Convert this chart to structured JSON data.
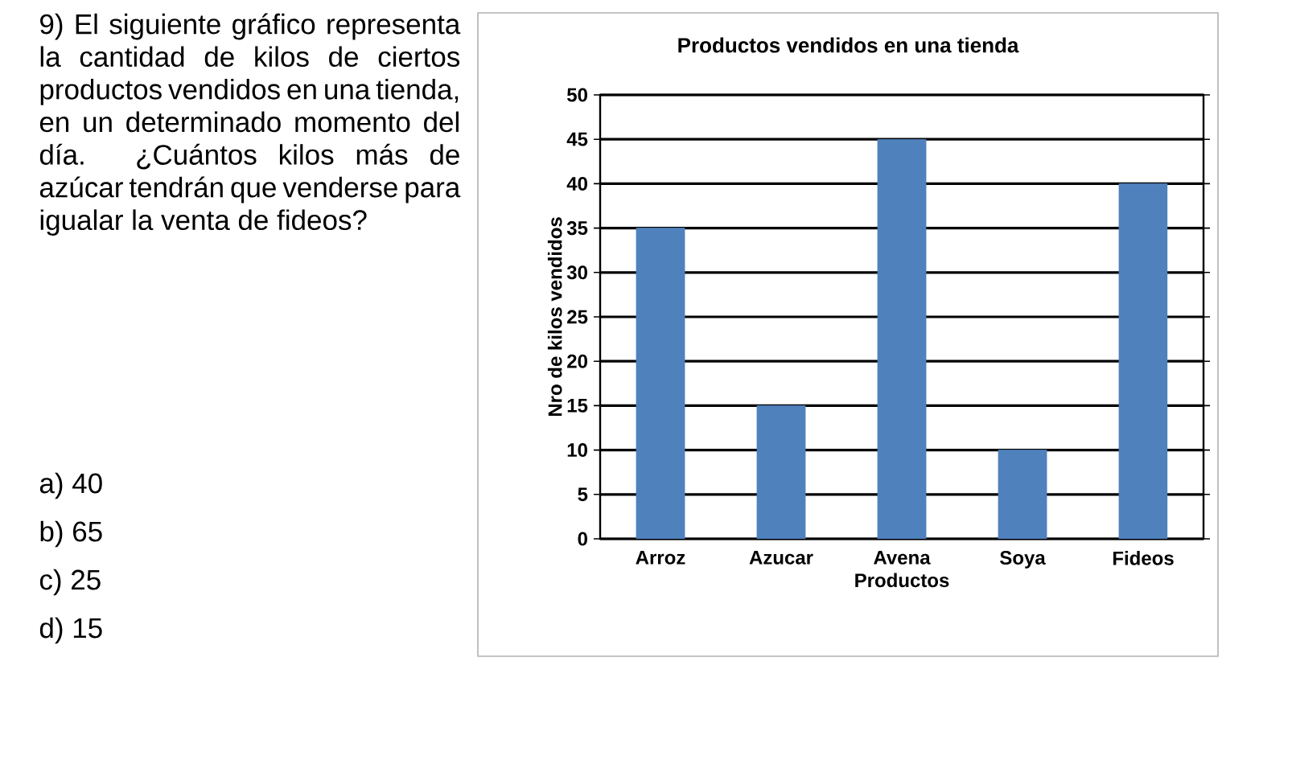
{
  "chart_data": {
    "type": "bar",
    "title": "Productos vendidos en una tienda",
    "xlabel": "Productos",
    "ylabel": "Nro de kilos vendidos",
    "categories": [
      "Arroz",
      "Azucar",
      "Avena",
      "Soya",
      "Fideos"
    ],
    "values": [
      35,
      15,
      45,
      10,
      40
    ],
    "color": "#4f81bd",
    "ylim": [
      0,
      50
    ],
    "yticks": [
      0,
      5,
      10,
      15,
      20,
      25,
      30,
      35,
      40,
      45,
      50
    ],
    "grid": "y",
    "annotations": [
      "9) El siguiente gráfico representa la cantidad de kilos de ciertos productos vendidos en una tienda, en un determinado momento del día. ¿Cuántos kilos más de azúcar tendrán que venderse para igualar la venta de fideos?",
      "a) 40",
      "b) 65",
      "c) 25",
      "d) 15"
    ]
  }
}
